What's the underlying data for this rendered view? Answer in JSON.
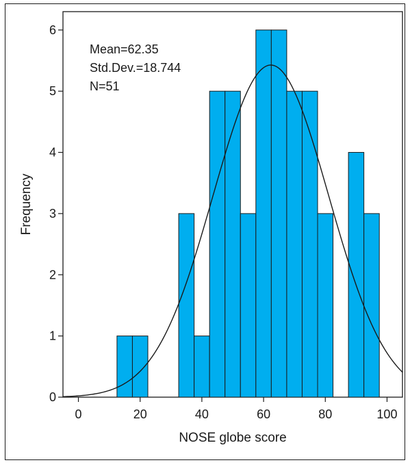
{
  "chart_data": {
    "type": "bar",
    "xlabel": "NOSE globe score",
    "ylabel": "Frequency",
    "xlim": [
      -5,
      105
    ],
    "ylim": [
      0,
      6.3
    ],
    "x_ticks": [
      0,
      20,
      40,
      60,
      80,
      100
    ],
    "y_ticks": [
      0,
      1,
      2,
      3,
      4,
      5,
      6
    ],
    "bin_width": 5,
    "bins": [
      {
        "start": 12.5,
        "end": 17.5,
        "count": 1
      },
      {
        "start": 17.5,
        "end": 22.5,
        "count": 1
      },
      {
        "start": 32.5,
        "end": 37.5,
        "count": 3
      },
      {
        "start": 37.5,
        "end": 42.5,
        "count": 1
      },
      {
        "start": 42.5,
        "end": 47.5,
        "count": 5
      },
      {
        "start": 47.5,
        "end": 52.5,
        "count": 5
      },
      {
        "start": 52.5,
        "end": 57.5,
        "count": 3
      },
      {
        "start": 57.5,
        "end": 62.5,
        "count": 6
      },
      {
        "start": 62.5,
        "end": 67.5,
        "count": 6
      },
      {
        "start": 67.5,
        "end": 72.5,
        "count": 5
      },
      {
        "start": 72.5,
        "end": 77.5,
        "count": 5
      },
      {
        "start": 77.5,
        "end": 82.5,
        "count": 3
      },
      {
        "start": 87.5,
        "end": 92.5,
        "count": 4
      },
      {
        "start": 92.5,
        "end": 97.5,
        "count": 3
      }
    ],
    "normal_curve": {
      "mean": 62.35,
      "std_dev": 18.744,
      "n": 51
    },
    "stats_text": [
      "Mean=62.35",
      "Std.Dev.=18.744",
      "N=51"
    ],
    "colors": {
      "bar_fill": "#00aeef",
      "bar_stroke": "#1a1a1a",
      "curve": "#1a1a1a",
      "frame": "#1a1a1a"
    }
  }
}
